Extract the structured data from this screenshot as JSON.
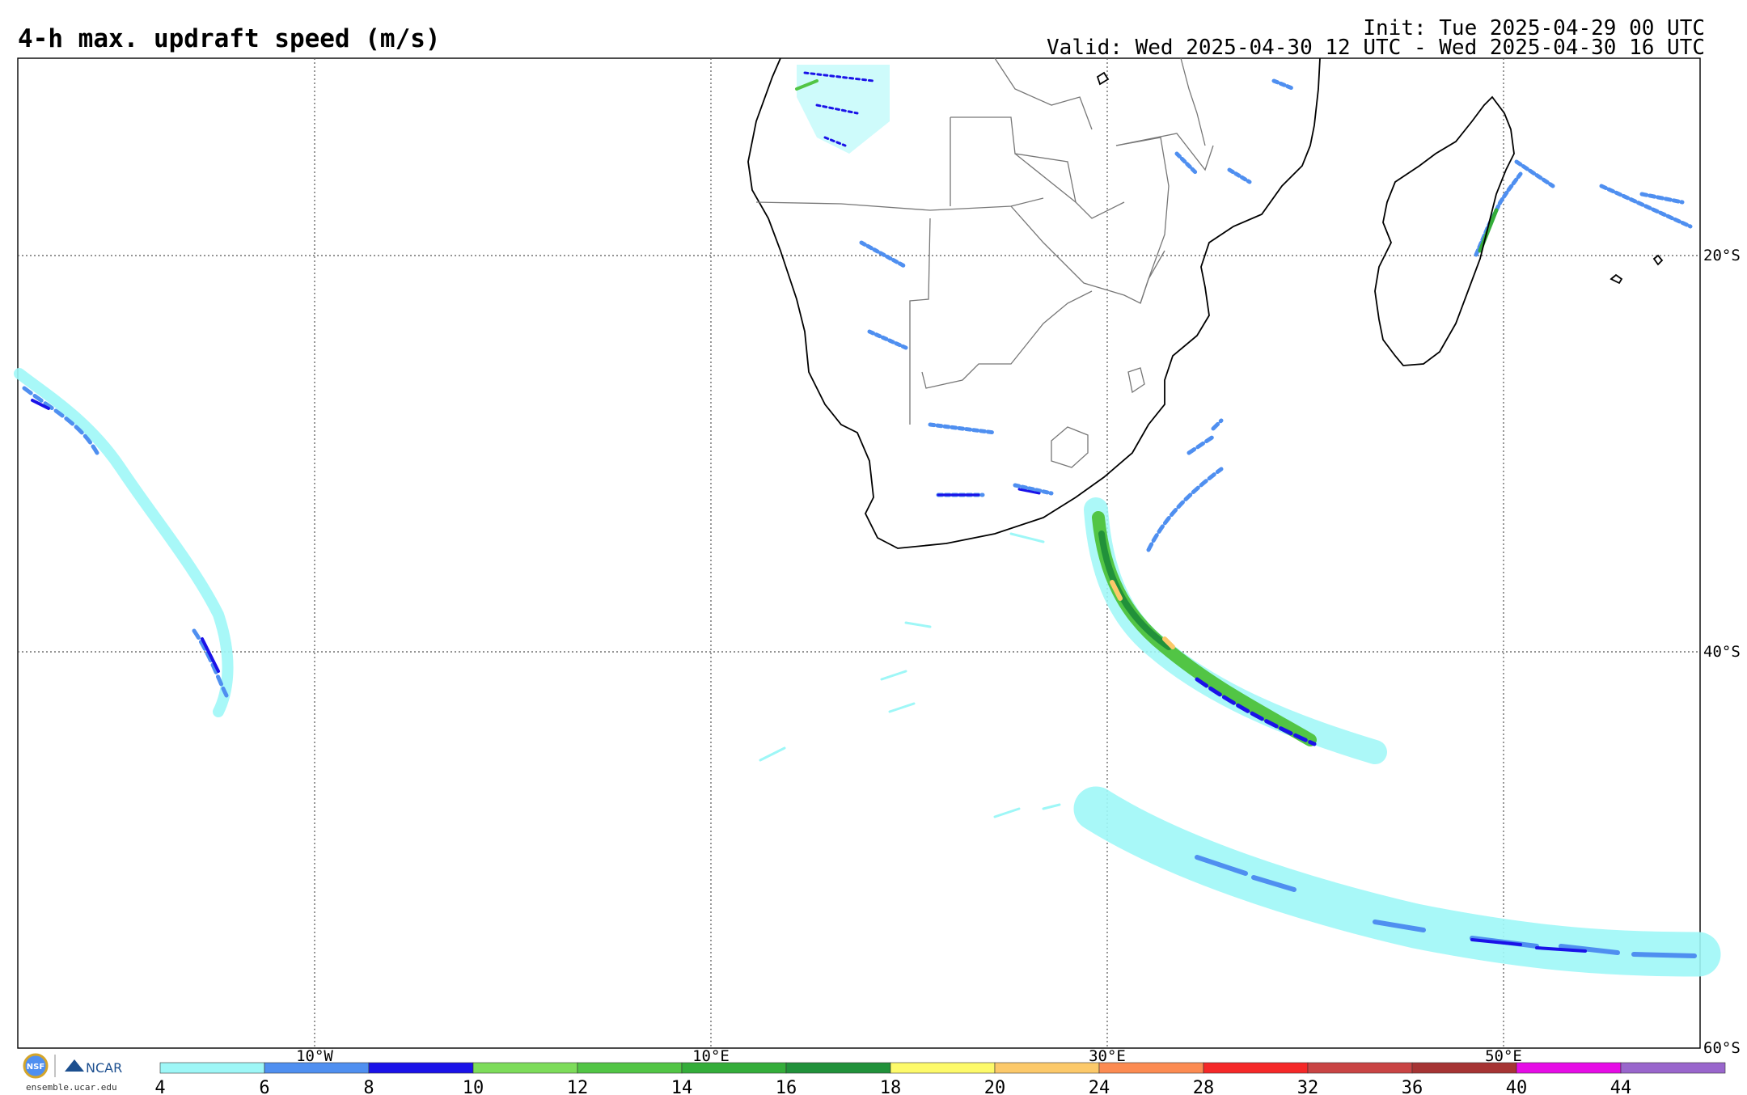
{
  "header": {
    "title": "4-h max. updraft speed (m/s)",
    "init": "Init: Tue 2025-04-29 00 UTC",
    "valid": "Valid: Wed 2025-04-30 12 UTC - Wed 2025-04-30 16 UTC"
  },
  "map": {
    "projection": "cylindrical",
    "lon_range": [
      -25,
      60
    ],
    "lat_range": [
      -60,
      -10
    ],
    "gridlines": "dotted",
    "lon_labels": [
      "10°W",
      "10°E",
      "30°E",
      "50°E"
    ],
    "lat_labels": [
      "20°S",
      "40°S",
      "60°S"
    ]
  },
  "colorbar": {
    "ticks": [
      "4",
      "6",
      "8",
      "10",
      "12",
      "14",
      "16",
      "18",
      "20",
      "24",
      "28",
      "32",
      "36",
      "40",
      "44"
    ],
    "colors": [
      "#9ef7f7",
      "#4f8ff0",
      "#1a12e8",
      "#7ddc5a",
      "#52c545",
      "#34ad3a",
      "#21913a",
      "#fdfa6a",
      "#fcc96a",
      "#fc8b52",
      "#f52828",
      "#c94444",
      "#a63434",
      "#e60ce6",
      "#9966cc"
    ]
  },
  "logos": {
    "org1": "NSF",
    "org2": "NCAR",
    "url": "ensemble.ucar.edu"
  }
}
